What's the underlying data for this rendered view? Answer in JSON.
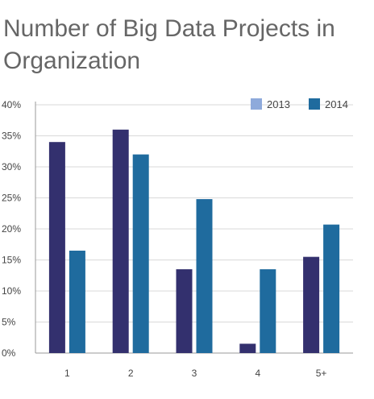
{
  "chart_data": {
    "type": "bar",
    "title": "Number of Big Data Projects in Organization",
    "categories": [
      "1",
      "2",
      "3",
      "4",
      "5+"
    ],
    "y_ticks": [
      "0%",
      "5%",
      "10%",
      "15%",
      "20%",
      "25%",
      "30%",
      "35%",
      "40%"
    ],
    "ylim": [
      0,
      40
    ],
    "grid": true,
    "legend_position": "top-right",
    "series": [
      {
        "name": "2013",
        "legend_color": "#8EAADB",
        "bar_color": "#33306E",
        "values": [
          34,
          36,
          13.5,
          1.5,
          15.5
        ]
      },
      {
        "name": "2014",
        "legend_color": "#1F6B9E",
        "bar_color": "#1F6B9E",
        "values": [
          16.5,
          32,
          24.8,
          13.5,
          20.7
        ]
      }
    ]
  }
}
